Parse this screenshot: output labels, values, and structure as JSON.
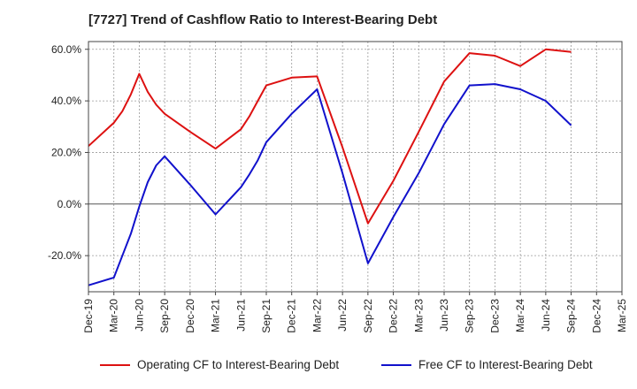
{
  "chart_data": {
    "type": "line",
    "title": "[7727]  Trend of Cashflow Ratio to Interest-Bearing Debt",
    "xlabel": "",
    "ylabel": "",
    "x_ticks": [
      "Dec-19",
      "Mar-20",
      "Jun-20",
      "Sep-20",
      "Dec-20",
      "Mar-21",
      "Jun-21",
      "Sep-21",
      "Dec-21",
      "Mar-22",
      "Jun-22",
      "Sep-22",
      "Dec-22",
      "Mar-23",
      "Jun-23",
      "Sep-23",
      "Dec-23",
      "Mar-24",
      "Jun-24",
      "Sep-24",
      "Dec-24",
      "Mar-25"
    ],
    "y_ticks": [
      "60.0%",
      "40.0%",
      "20.0%",
      "0.0%",
      "-20.0%"
    ],
    "y_tick_values": [
      60,
      40,
      20,
      0,
      -20
    ],
    "ylim": [
      -34,
      63
    ],
    "grid": true,
    "legend_position": "bottom",
    "series": [
      {
        "name": "Operating CF to Interest-Bearing Debt",
        "color": "#dd1111",
        "points": [
          [
            "Dec-19",
            22.5
          ],
          [
            "Mar-20",
            31.5
          ],
          [
            "Apr-20",
            36.0
          ],
          [
            "May-20",
            42.5
          ],
          [
            "Jun-20",
            50.5
          ],
          [
            "Jul-20",
            43.5
          ],
          [
            "Aug-20",
            38.5
          ],
          [
            "Sep-20",
            35.0
          ],
          [
            "Dec-20",
            28.0
          ],
          [
            "Mar-21",
            21.5
          ],
          [
            "Jun-21",
            29.0
          ],
          [
            "Jul-21",
            34.0
          ],
          [
            "Aug-21",
            40.0
          ],
          [
            "Sep-21",
            46.0
          ],
          [
            "Dec-21",
            49.0
          ],
          [
            "Mar-22",
            49.5
          ],
          [
            "Jun-22",
            22.0
          ],
          [
            "Sep-22",
            -7.5
          ],
          [
            "Dec-22",
            9.0
          ],
          [
            "Mar-23",
            28.0
          ],
          [
            "Jun-23",
            47.5
          ],
          [
            "Sep-23",
            58.5
          ],
          [
            "Dec-23",
            57.5
          ],
          [
            "Mar-24",
            53.5
          ],
          [
            "Jun-24",
            60.0
          ],
          [
            "Sep-24",
            59.0
          ]
        ]
      },
      {
        "name": "Free CF to Interest-Bearing Debt",
        "color": "#1111cc",
        "points": [
          [
            "Dec-19",
            -31.5
          ],
          [
            "Mar-20",
            -28.5
          ],
          [
            "Apr-20",
            -20.0
          ],
          [
            "May-20",
            -11.5
          ],
          [
            "Jun-20",
            -1.0
          ],
          [
            "Jul-20",
            8.5
          ],
          [
            "Aug-20",
            15.0
          ],
          [
            "Sep-20",
            18.5
          ],
          [
            "Dec-20",
            7.5
          ],
          [
            "Mar-21",
            -4.0
          ],
          [
            "Jun-21",
            6.5
          ],
          [
            "Jul-21",
            11.5
          ],
          [
            "Aug-21",
            17.0
          ],
          [
            "Sep-21",
            24.0
          ],
          [
            "Dec-21",
            35.0
          ],
          [
            "Mar-22",
            44.5
          ],
          [
            "Jun-22",
            12.0
          ],
          [
            "Sep-22",
            -23.0
          ],
          [
            "Dec-22",
            -5.0
          ],
          [
            "Mar-23",
            12.0
          ],
          [
            "Jun-23",
            31.0
          ],
          [
            "Sep-23",
            46.0
          ],
          [
            "Dec-23",
            46.5
          ],
          [
            "Mar-24",
            44.5
          ],
          [
            "Jun-24",
            40.0
          ],
          [
            "Sep-24",
            30.5
          ]
        ]
      }
    ]
  }
}
